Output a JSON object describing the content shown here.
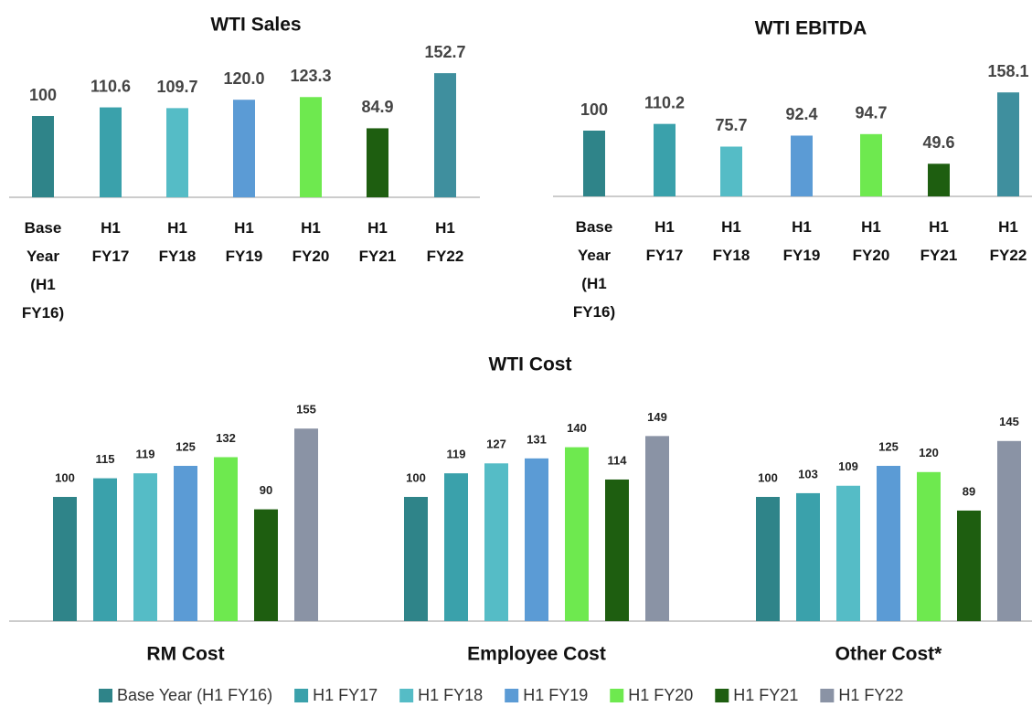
{
  "chart_data": [
    {
      "type": "bar",
      "title": "WTI Sales",
      "categories": [
        "Base Year (H1 FY16)",
        "H1 FY17",
        "H1 FY18",
        "H1 FY19",
        "H1 FY20",
        "H1 FY21",
        "H1 FY22"
      ],
      "values": [
        100,
        110.6,
        109.7,
        120.0,
        123.3,
        84.9,
        152.7
      ],
      "value_labels": [
        "100",
        "110.6",
        "109.7",
        "120.0",
        "123.3",
        "84.9",
        "152.7"
      ],
      "colors": [
        "#2f8489",
        "#3aa1ab",
        "#55bcc6",
        "#5b9bd5",
        "#6ee94f",
        "#1e5e10",
        "#3f8f9e"
      ]
    },
    {
      "type": "bar",
      "title": "WTI EBITDA",
      "categories": [
        "Base Year (H1 FY16)",
        "H1 FY17",
        "H1 FY18",
        "H1 FY19",
        "H1 FY20",
        "H1 FY21",
        "H1 FY22"
      ],
      "values": [
        100,
        110.2,
        75.7,
        92.4,
        94.7,
        49.6,
        158.1
      ],
      "colors": [
        "#2f8489",
        "#3aa1ab",
        "#55bcc6",
        "#5b9bd5",
        "#6ee94f",
        "#1e5e10",
        "#3f8f9e"
      ]
    },
    {
      "type": "grouped_bar",
      "title": "WTI Cost",
      "categories": [
        "RM Cost",
        "Employee Cost",
        "Other Cost*"
      ],
      "series": [
        {
          "name": "Base Year (H1 FY16)",
          "color": "#2f8489",
          "values": [
            100,
            100,
            100
          ]
        },
        {
          "name": "H1 FY17",
          "color": "#3aa1ab",
          "values": [
            115,
            119,
            103
          ]
        },
        {
          "name": "H1 FY18",
          "color": "#55bcc6",
          "values": [
            119,
            127,
            109
          ]
        },
        {
          "name": "H1 FY19",
          "color": "#5b9bd5",
          "values": [
            125,
            131,
            125
          ]
        },
        {
          "name": "H1 FY20",
          "color": "#6ee94f",
          "values": [
            132,
            140,
            120
          ]
        },
        {
          "name": "H1 FY21",
          "color": "#1e5e10",
          "values": [
            90,
            114,
            89
          ]
        },
        {
          "name": "H1 FY22",
          "color": "#8a93a5",
          "values": [
            155,
            149,
            145
          ]
        }
      ],
      "legend": "bottom"
    }
  ]
}
